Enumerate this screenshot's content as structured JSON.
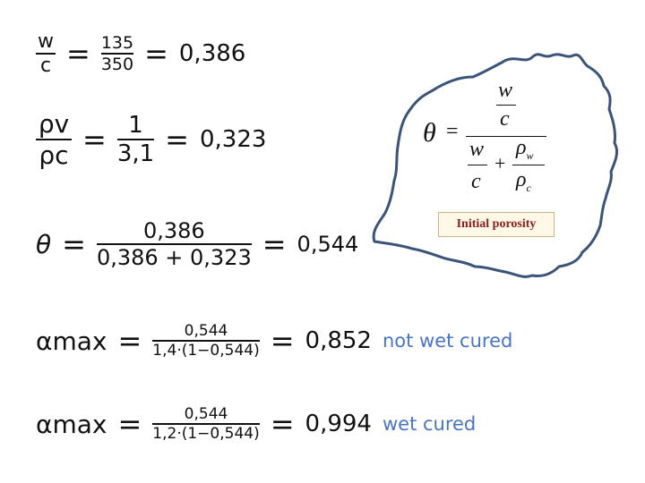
{
  "eq1": {
    "lhs_num": "w",
    "lhs_den": "c",
    "num": "135",
    "den": "350",
    "result": "0,386"
  },
  "eq2": {
    "lhs_num": "ρv",
    "lhs_den": "ρc",
    "num": "1",
    "den": "3,1",
    "result": "0,323"
  },
  "eq3": {
    "lhs": "θ",
    "num": "0,386",
    "den": "0,386 + 0,323",
    "result": "0,544"
  },
  "eq4": {
    "lhs": "αmax",
    "num": "0,544",
    "den": "1,4·(1−0,544)",
    "result": "0,852",
    "note": "not wet cured"
  },
  "eq5": {
    "lhs": "αmax",
    "num": "0,544",
    "den": "1,2·(1−0,544)",
    "result": "0,994",
    "note": "wet cured"
  },
  "formula": {
    "theta": "θ",
    "w": "w",
    "c": "c",
    "rho_w": "ρ",
    "sub_w": "w",
    "rho_c": "ρ",
    "sub_c": "c",
    "plus": "+",
    "equals": "="
  },
  "label": {
    "text": "Initial porosity"
  }
}
